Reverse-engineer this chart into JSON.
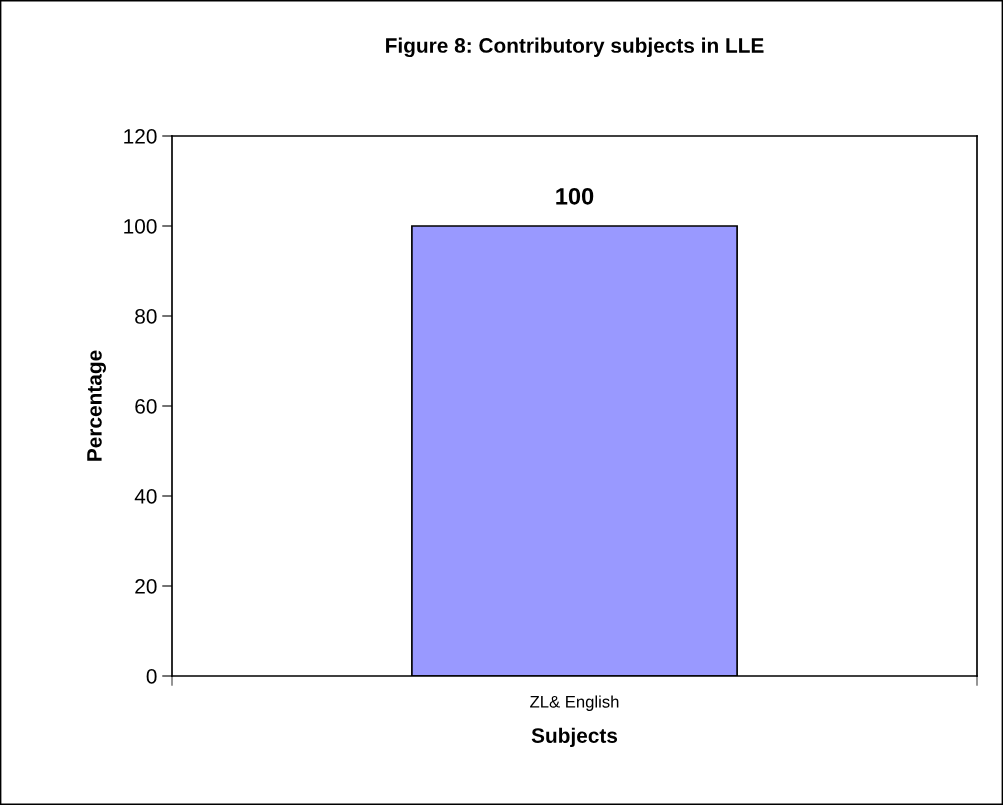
{
  "chart_data": {
    "type": "bar",
    "title": "Figure 8: Contributory subjects in LLE",
    "xlabel": "Subjects",
    "ylabel": "Percentage",
    "categories": [
      "ZL& English"
    ],
    "values": [
      100
    ],
    "color": "#9999ff",
    "ylim": [
      0,
      120
    ],
    "yticks": [
      0,
      20,
      40,
      60,
      80,
      100,
      120
    ],
    "data_labels": true,
    "grid": false,
    "legend": false
  }
}
